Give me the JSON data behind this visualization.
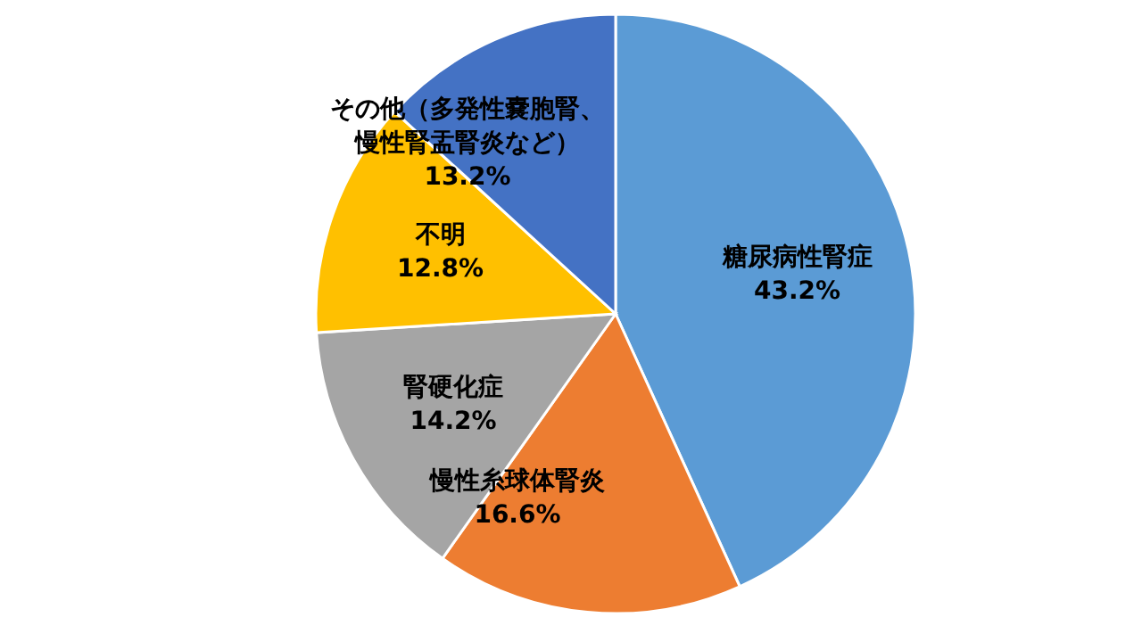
{
  "chart_data": {
    "type": "pie",
    "categories": [
      "糖尿病性腎症",
      "慢性糸球体腎炎",
      "腎硬化症",
      "不明",
      "その他（多発性嚢胞腎、慢性腎盂腎炎など）"
    ],
    "values": [
      43.2,
      16.6,
      14.2,
      12.8,
      13.2
    ],
    "colors": [
      "#5b9bd5",
      "#ed7d31",
      "#a5a5a5",
      "#ffc000",
      "#4472c4"
    ],
    "value_labels": [
      "43.2%",
      "16.6%",
      "14.2%",
      "12.8%",
      "13.2%"
    ],
    "legend": false
  }
}
